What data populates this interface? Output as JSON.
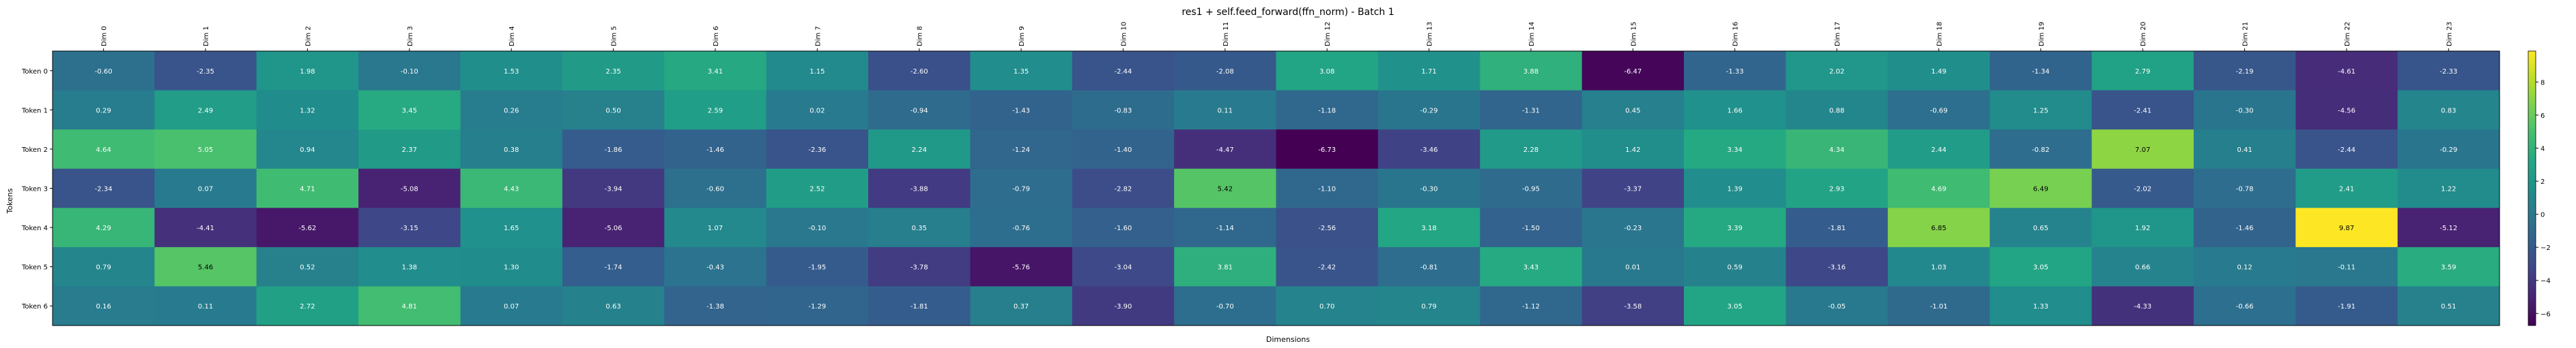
{
  "chart_data": {
    "type": "heatmap",
    "title": "res1 + self.feed_forward(ffn_norm) - Batch 1",
    "xlabel": "Dimensions",
    "ylabel": "Tokens",
    "x_labels": [
      "Dim 0",
      "Dim 1",
      "Dim 2",
      "Dim 3",
      "Dim 4",
      "Dim 5",
      "Dim 6",
      "Dim 7",
      "Dim 8",
      "Dim 9",
      "Dim 10",
      "Dim 11",
      "Dim 12",
      "Dim 13",
      "Dim 14",
      "Dim 15",
      "Dim 16",
      "Dim 17",
      "Dim 18",
      "Dim 19",
      "Dim 20",
      "Dim 21",
      "Dim 22",
      "Dim 23"
    ],
    "y_labels": [
      "Token 0",
      "Token 1",
      "Token 2",
      "Token 3",
      "Token 4",
      "Token 5",
      "Token 6"
    ],
    "values": [
      [
        -0.6,
        -2.35,
        1.98,
        -0.1,
        1.53,
        2.35,
        3.41,
        1.15,
        -2.6,
        1.35,
        -2.44,
        -2.08,
        3.08,
        1.71,
        3.88,
        -6.47,
        -1.33,
        2.02,
        1.49,
        -1.34,
        2.79,
        -2.19,
        -4.61,
        -2.33
      ],
      [
        0.29,
        2.49,
        1.32,
        3.45,
        0.26,
        0.5,
        2.59,
        0.02,
        -0.94,
        -1.43,
        -0.83,
        0.11,
        -1.18,
        -0.29,
        -1.31,
        0.45,
        1.66,
        0.88,
        -0.69,
        1.25,
        -2.41,
        -0.3,
        -4.56,
        0.83
      ],
      [
        4.64,
        5.05,
        0.94,
        2.37,
        0.38,
        -1.86,
        -1.46,
        -2.36,
        2.24,
        -1.24,
        -1.4,
        -4.47,
        -6.73,
        -3.46,
        2.28,
        1.42,
        3.34,
        4.34,
        2.44,
        -0.82,
        7.07,
        0.41,
        -2.44,
        -0.29
      ],
      [
        -2.34,
        0.07,
        4.71,
        -5.08,
        4.43,
        -3.94,
        -0.6,
        2.52,
        -3.88,
        -0.79,
        -2.82,
        5.42,
        -1.1,
        -0.3,
        -0.95,
        -3.37,
        1.39,
        2.93,
        4.69,
        6.49,
        -2.02,
        -0.78,
        2.41,
        1.22
      ],
      [
        4.29,
        -4.41,
        -5.62,
        -3.15,
        1.65,
        -5.06,
        1.07,
        -0.1,
        0.35,
        -0.76,
        -1.6,
        -1.14,
        -2.56,
        3.18,
        -1.5,
        -0.23,
        3.39,
        -1.81,
        6.85,
        0.65,
        1.92,
        -1.46,
        9.87,
        -5.12
      ],
      [
        0.79,
        5.46,
        0.52,
        1.38,
        1.3,
        -1.74,
        -0.43,
        -1.95,
        -3.78,
        -5.76,
        -3.04,
        3.81,
        -2.42,
        -0.81,
        3.43,
        0.01,
        0.59,
        -3.16,
        1.03,
        3.05,
        0.66,
        0.12,
        -0.11,
        3.59
      ],
      [
        0.16,
        0.11,
        2.72,
        4.81,
        0.07,
        0.63,
        -1.38,
        -1.29,
        -1.81,
        0.37,
        -3.9,
        -0.7,
        0.7,
        0.79,
        -1.12,
        -3.58,
        3.05,
        -0.05,
        -1.01,
        1.33,
        -4.33,
        -0.66,
        -1.91,
        0.51
      ]
    ],
    "colormap": "viridis",
    "vmin": -6.73,
    "vmax": 9.87,
    "colorbar_ticks": [
      -6,
      -4,
      -2,
      0,
      2,
      4,
      6,
      8
    ],
    "grid": false
  }
}
